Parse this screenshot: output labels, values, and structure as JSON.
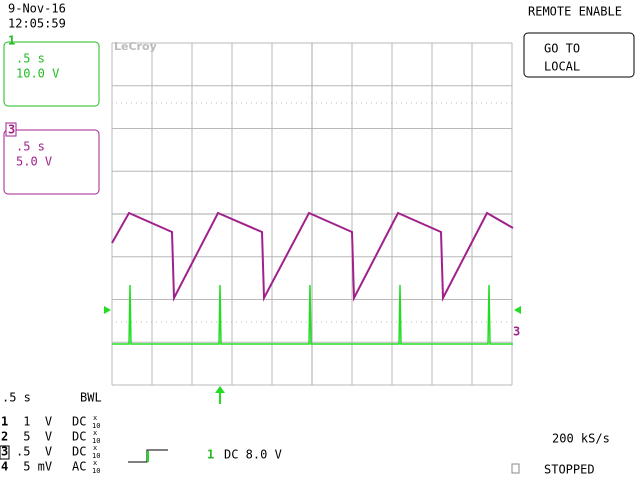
{
  "header": {
    "date": "9-Nov-16",
    "time": "12:05:59",
    "remote": "REMOTE ENABLE"
  },
  "button": {
    "line1": "GO TO",
    "line2": "LOCAL"
  },
  "trace_boxes": [
    {
      "id": "1",
      "timebase": ".5 s",
      "scale": "10.0 V"
    },
    {
      "id": "3",
      "timebase": ".5 s",
      "scale": "5.0 V"
    }
  ],
  "logo": "LeCroy",
  "ground_marker": "3",
  "status": {
    "timebase": ".5  s",
    "bwl": "BWL",
    "channels": [
      {
        "id": "1",
        "scale": " 1  V",
        "coupling": "DC",
        "probe_x": "x",
        "probe_n": "10"
      },
      {
        "id": "2",
        "scale": " 5  V",
        "coupling": "DC",
        "probe_x": "x",
        "probe_n": "10"
      },
      {
        "id": "3",
        "scale": ".5  V",
        "coupling": "DC",
        "probe_x": "x",
        "probe_n": "10"
      },
      {
        "id": "4",
        "scale": " 5 mV",
        "coupling": "AC",
        "probe_x": "x",
        "probe_n": "10"
      }
    ]
  },
  "trigger": {
    "source": "1",
    "setting": "DC 8.0 V"
  },
  "sample_rate": "200 kS/s",
  "state": "STOPPED"
}
